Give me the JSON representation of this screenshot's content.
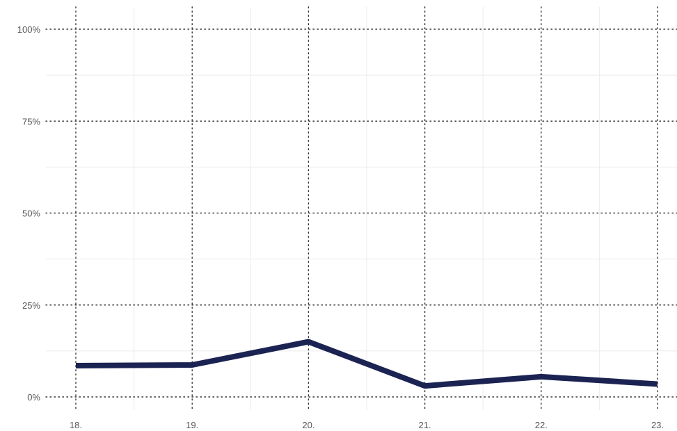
{
  "chart_data": {
    "type": "line",
    "title": "",
    "xlabel": "",
    "ylabel": "",
    "x": [
      "18.",
      "19.",
      "20.",
      "21.",
      "22.",
      "23."
    ],
    "series": [
      {
        "values": [
          8.5,
          8.7,
          15.0,
          3.0,
          5.5,
          3.5
        ]
      }
    ],
    "ylim": [
      0,
      100
    ],
    "yticks": [
      0,
      25,
      50,
      75,
      100
    ],
    "ytick_labels": [
      "0%",
      "25%",
      "50%",
      "75%",
      "100%"
    ],
    "grid": true,
    "legend": "none",
    "colors": {
      "line": "#1b2352",
      "major_grid": "#333333",
      "minor_grid": "#ebebeb",
      "tick_text": "#555555"
    }
  }
}
